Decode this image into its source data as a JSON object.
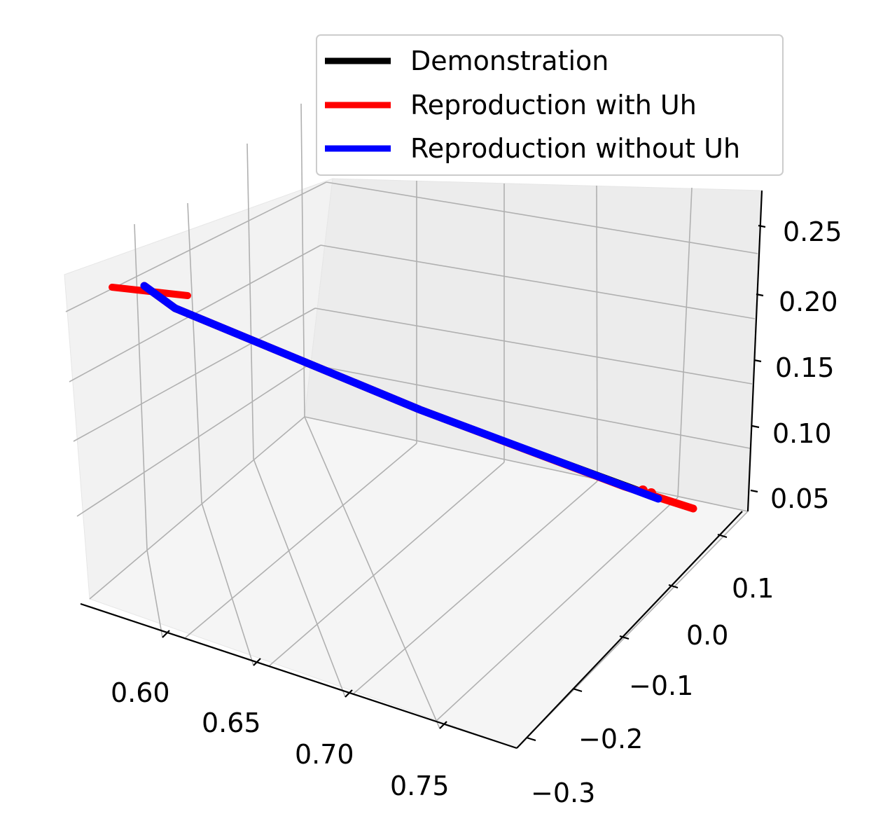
{
  "chart_data": {
    "type": "line",
    "projection": "3d",
    "legend": {
      "placement": "top-right",
      "entries": [
        {
          "label": "Demonstration",
          "color": "#000000"
        },
        {
          "label": "Reproduction with Uh",
          "color": "#ff0000"
        },
        {
          "label": "Reproduction without Uh",
          "color": "#0000ff"
        }
      ]
    },
    "x_ticks": [
      "0.60",
      "0.65",
      "0.70",
      "0.75"
    ],
    "y_ticks": [
      "−0.3",
      "−0.2",
      "−0.1",
      "0.0",
      "0.1"
    ],
    "z_ticks": [
      "0.05",
      "0.10",
      "0.15",
      "0.20",
      "0.25"
    ],
    "grid": true,
    "series": [
      {
        "name": "Demonstration",
        "color": "#000000",
        "points": [
          [
            0.6,
            -0.14,
            0.205
          ],
          [
            0.74,
            0.1,
            0.065
          ]
        ]
      },
      {
        "name": "Reproduction with Uh",
        "color": "#ff0000",
        "points": [
          [
            0.58,
            -0.2,
            0.215
          ],
          [
            0.6,
            -0.14,
            0.205
          ],
          [
            0.62,
            -0.11,
            0.19
          ],
          [
            0.66,
            -0.06,
            0.165
          ],
          [
            0.7,
            0.0,
            0.13
          ],
          [
            0.74,
            0.08,
            0.075
          ],
          [
            0.76,
            0.12,
            0.055
          ]
        ]
      },
      {
        "name": "Reproduction without Uh",
        "color": "#0000ff",
        "points": [
          [
            0.6,
            -0.14,
            0.205
          ],
          [
            0.62,
            -0.11,
            0.19
          ],
          [
            0.66,
            -0.06,
            0.165
          ],
          [
            0.7,
            0.0,
            0.13
          ],
          [
            0.74,
            0.09,
            0.07
          ]
        ]
      }
    ]
  }
}
